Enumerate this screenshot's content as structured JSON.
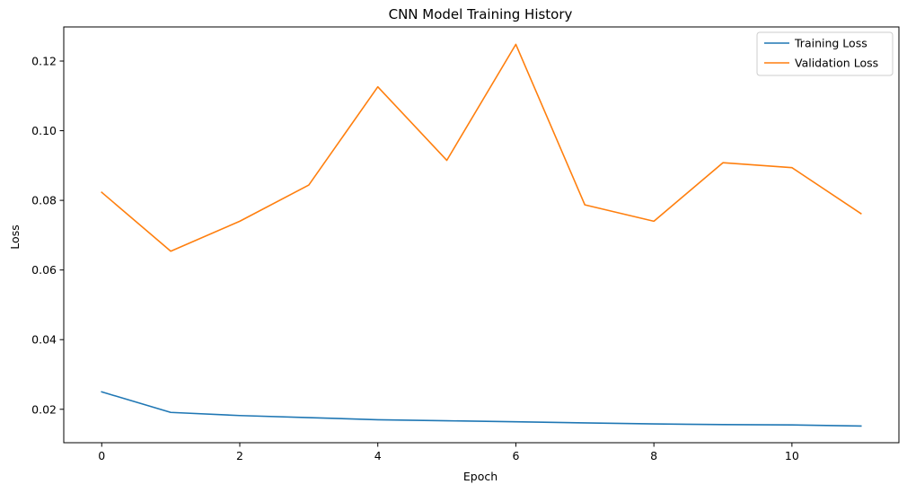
{
  "chart_data": {
    "type": "line",
    "title": "CNN Model Training History",
    "xlabel": "Epoch",
    "ylabel": "Loss",
    "xlim": [
      -0.55,
      11.55
    ],
    "ylim": [
      0.0104,
      0.1298
    ],
    "xticks": [
      0,
      2,
      4,
      6,
      8,
      10
    ],
    "xtick_labels": [
      "0",
      "2",
      "4",
      "6",
      "8",
      "10"
    ],
    "yticks": [
      0.02,
      0.04,
      0.06,
      0.08,
      0.1,
      0.12
    ],
    "ytick_labels": [
      "0.02",
      "0.04",
      "0.06",
      "0.08",
      "0.10",
      "0.12"
    ],
    "grid": false,
    "legend_position": "top-right",
    "x": [
      0,
      1,
      2,
      3,
      4,
      5,
      6,
      7,
      8,
      9,
      10,
      11
    ],
    "series": [
      {
        "name": "Training Loss",
        "color": "#1f77b4",
        "values": [
          0.025,
          0.0191,
          0.0182,
          0.0176,
          0.017,
          0.0167,
          0.0164,
          0.0161,
          0.0158,
          0.0156,
          0.0155,
          0.0152
        ]
      },
      {
        "name": "Validation Loss",
        "color": "#ff7f0e",
        "values": [
          0.0823,
          0.0654,
          0.074,
          0.0844,
          0.1126,
          0.0915,
          0.1248,
          0.0787,
          0.074,
          0.0908,
          0.0894,
          0.0762
        ]
      }
    ]
  }
}
